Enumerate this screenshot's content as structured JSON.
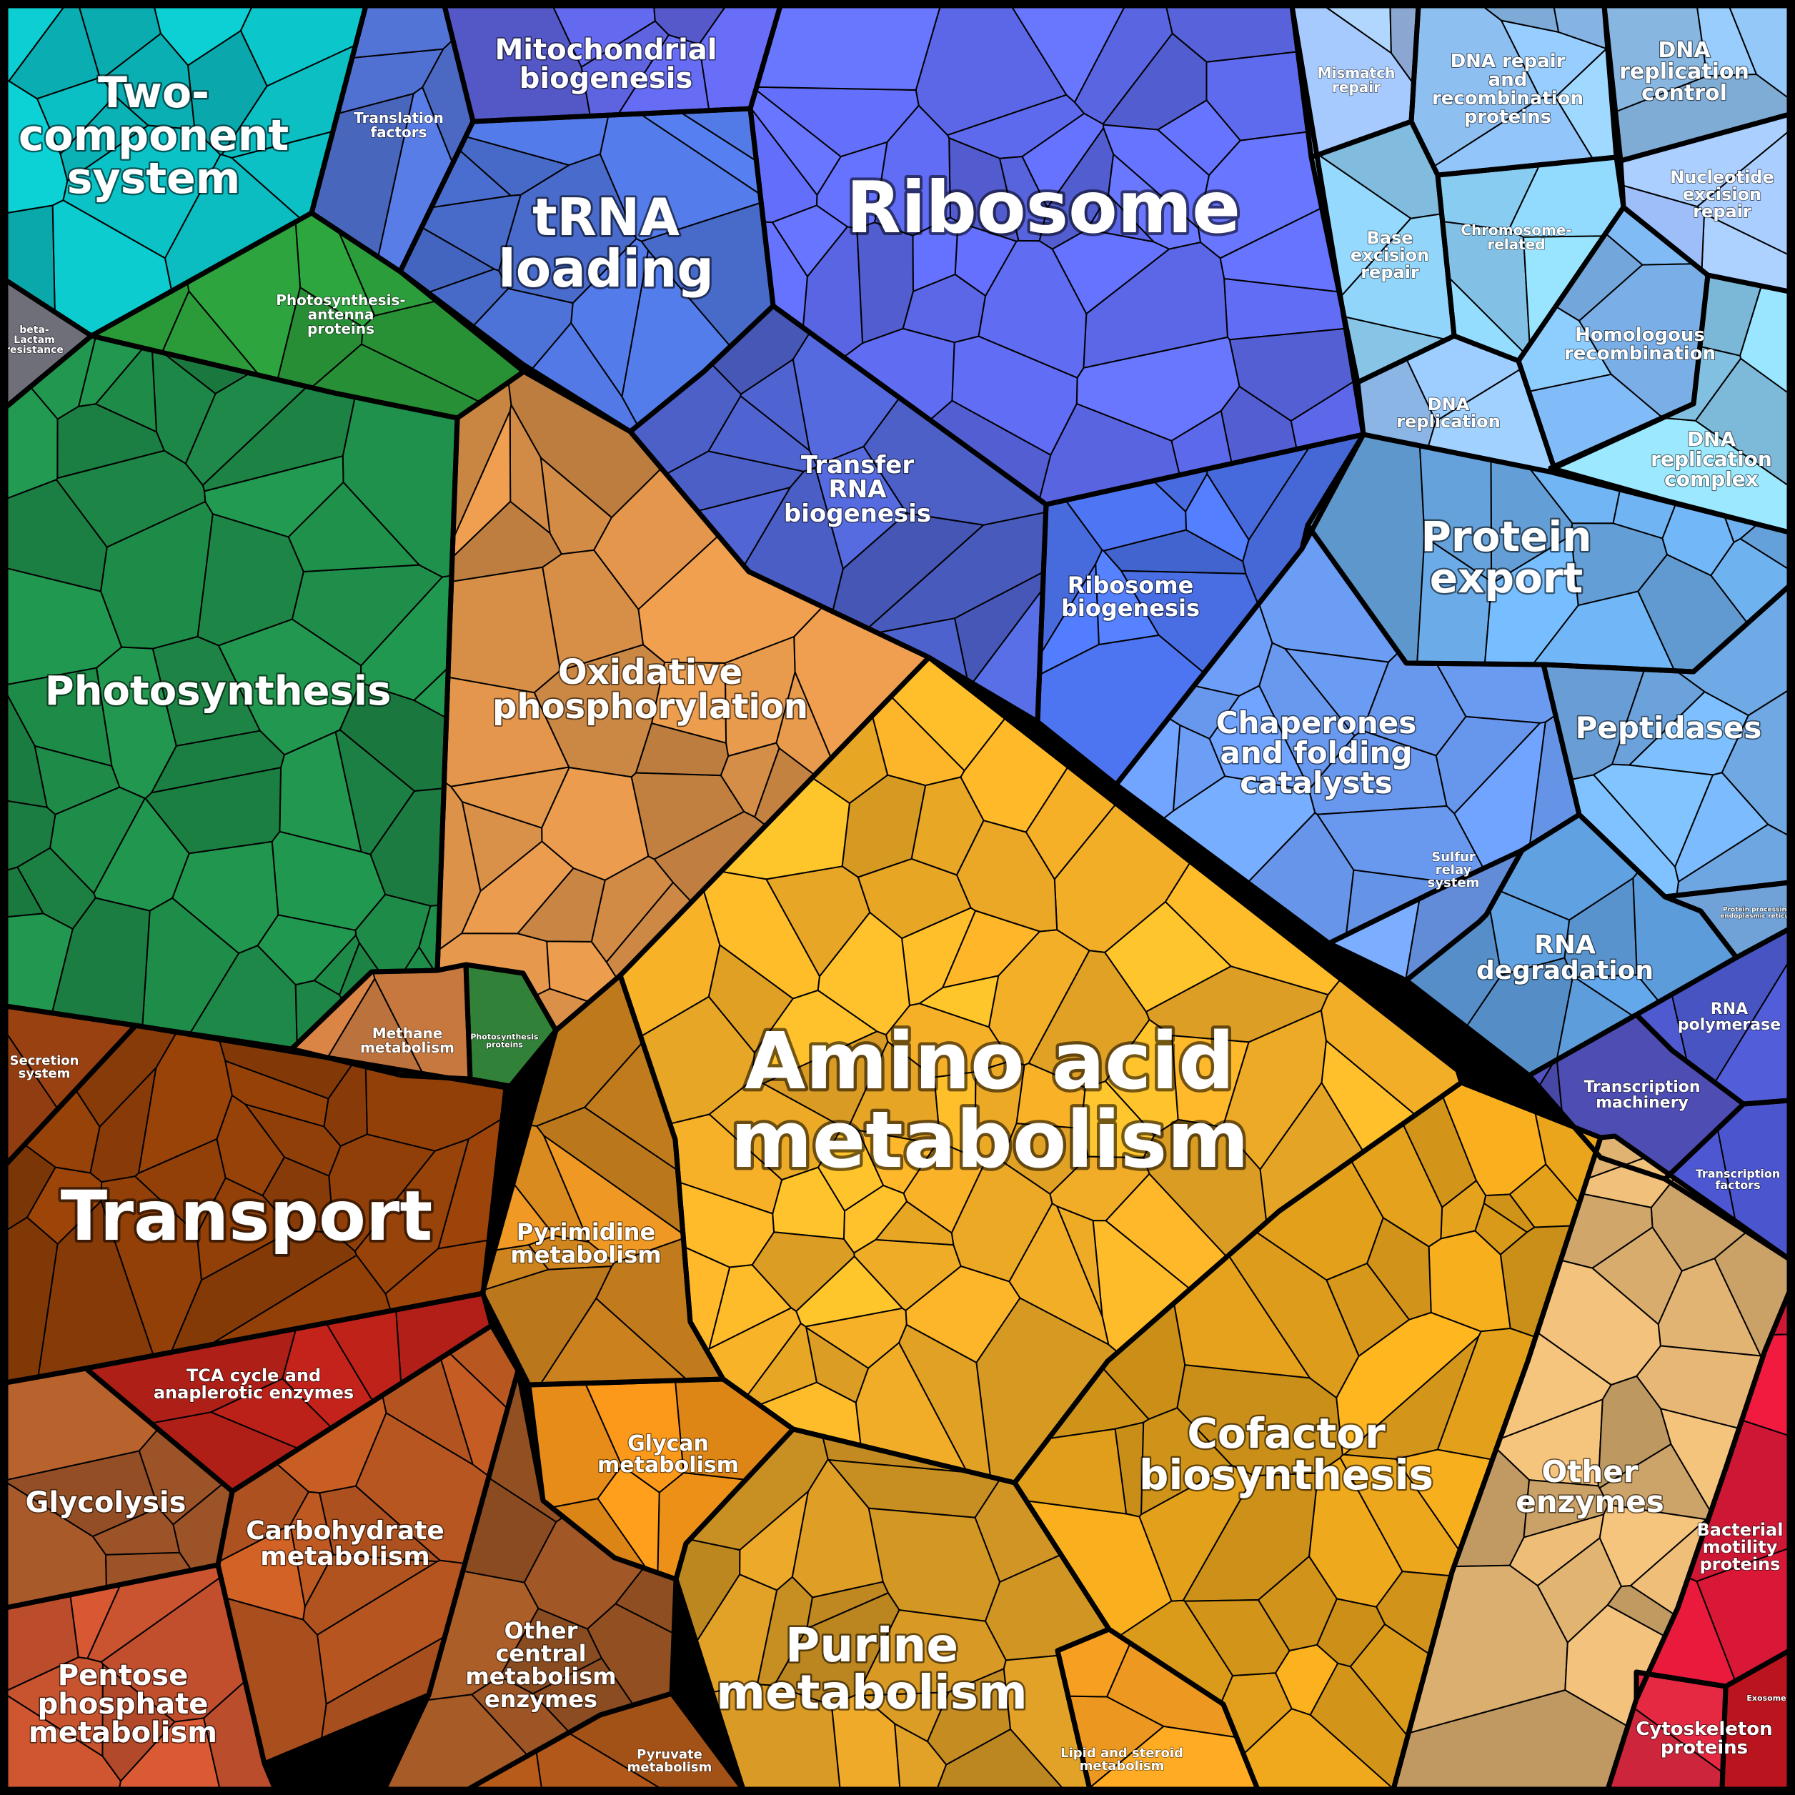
{
  "title": "",
  "regions": [
    {
      "id": "two-component-system",
      "label": "Two-\ncomponent\nsystem",
      "color": "#0bc0c4"
    },
    {
      "id": "translation-factors",
      "label": "Translation\nfactors",
      "color": "#5274d6"
    },
    {
      "id": "mitochondrial-biogenesis",
      "label": "Mitochondrial\nbiogenesis",
      "color": "#5e63e0"
    },
    {
      "id": "trna-loading",
      "label": "tRNA\nloading",
      "color": "#4f75dd"
    },
    {
      "id": "ribosome",
      "label": "Ribosome",
      "color": "#5f6bf0"
    },
    {
      "id": "transfer-rna-biogenesis",
      "label": "Transfer\nRNA\nbiogenesis",
      "color": "#4f63cf"
    },
    {
      "id": "ribosome-biogenesis",
      "label": "Ribosome\nbiogenesis",
      "color": "#4d74f0"
    },
    {
      "id": "mismatch-repair",
      "label": "Mismatch\nrepair",
      "color": "#9fc0f2"
    },
    {
      "id": "dna-repair-recombination",
      "label": "DNA repair\nand\nrecombination\nproteins",
      "color": "#8fc2f5"
    },
    {
      "id": "dna-replication-control",
      "label": "DNA\nreplication\ncontrol",
      "color": "#93c7f6"
    },
    {
      "id": "base-excision-repair",
      "label": "Base\nexcision\nrepair",
      "color": "#8fd0f5"
    },
    {
      "id": "chromosome-related",
      "label": "Chromosome-\nrelated",
      "color": "#8cd0f6"
    },
    {
      "id": "nucleotide-excision-repair",
      "label": "Nucleotide\nexcision\nrepair",
      "color": "#9bbcf6"
    },
    {
      "id": "homologous-recombination",
      "label": "Homologous\nrecombination",
      "color": "#7fb8f2"
    },
    {
      "id": "dna-replication",
      "label": "DNA\nreplication",
      "color": "#92bff0"
    },
    {
      "id": "dna-replication-complex",
      "label": "DNA\nreplication\ncomplex",
      "color": "#8ed3f7"
    },
    {
      "id": "protein-export",
      "label": "Protein\nexport",
      "color": "#6aaae6"
    },
    {
      "id": "peptidases",
      "label": "Peptidases",
      "color": "#76b3f2"
    },
    {
      "id": "chaperones",
      "label": "Chaperones\nand folding\ncatalysts",
      "color": "#6a9bf2"
    },
    {
      "id": "sulfur-relay",
      "label": "Sulfur\nrelay\nsystem",
      "color": "#6e9cf0"
    },
    {
      "id": "protein-processing-er",
      "label": "Protein processing in\nendoplasmic reticulum",
      "color": "#7fb8f5"
    },
    {
      "id": "rna-degradation",
      "label": "RNA\ndegradation",
      "color": "#5c9ad8"
    },
    {
      "id": "rna-polymerase",
      "label": "RNA\npolymerase",
      "color": "#4a55c4"
    },
    {
      "id": "transcription-machinery",
      "label": "Transcription\nmachinery",
      "color": "#5252c0"
    },
    {
      "id": "transcription-factors",
      "label": "Transcription\nfactors",
      "color": "#4a55cc"
    },
    {
      "id": "beta-lactam-resistance",
      "label": "beta-\nLactam\nresistance",
      "color": "#6e6e78"
    },
    {
      "id": "photosynthesis-antenna",
      "label": "Photosynthesis-\nantenna\nproteins",
      "color": "#2b9c3a"
    },
    {
      "id": "photosynthesis",
      "label": "Photosynthesis",
      "color": "#1e8a48"
    },
    {
      "id": "oxidative-phosphorylation",
      "label": "Oxidative\nphosphorylation",
      "color": "#d99048"
    },
    {
      "id": "methane-metabolism",
      "label": "Methane\nmetabolism",
      "color": "#c97a40"
    },
    {
      "id": "photosynthesis-proteins",
      "label": "Photosynthesis\nproteins",
      "color": "#3a9440"
    },
    {
      "id": "amino-acid-metabolism",
      "label": "Amino acid\nmetabolism",
      "color": "#f8b228"
    },
    {
      "id": "pyrimidine-metabolism",
      "label": "Pyrimidine\nmetabolism",
      "color": "#d88a20"
    },
    {
      "id": "glycan-metabolism",
      "label": "Glycan\nmetabolism",
      "color": "#ec8f18"
    },
    {
      "id": "purine-metabolism",
      "label": "Purine\nmetabolism",
      "color": "#d89a25"
    },
    {
      "id": "lipid-steroid-metabolism",
      "label": "Lipid and steroid\nmetabolism",
      "color": "#f09a20"
    },
    {
      "id": "cofactor-biosynthesis",
      "label": "Cofactor\nbiosynthesis",
      "color": "#e8a41c"
    },
    {
      "id": "other-enzymes",
      "label": "Other\nenzymes",
      "color": "#dcb070"
    },
    {
      "id": "secretion-system",
      "label": "Secretion\nsystem",
      "color": "#8a3a10"
    },
    {
      "id": "transport",
      "label": "Transport",
      "color": "#8e3e08"
    },
    {
      "id": "tca-cycle",
      "label": "TCA cycle and\nanaplerotic enzymes",
      "color": "#b42018"
    },
    {
      "id": "glycolysis",
      "label": "Glycolysis",
      "color": "#a95a2a"
    },
    {
      "id": "carbohydrate-metabolism",
      "label": "Carbohydrate\nmetabolism",
      "color": "#c05a22"
    },
    {
      "id": "other-central-metabolism",
      "label": "Other\ncentral\nmetabolism\nenzymes",
      "color": "#9a5424"
    },
    {
      "id": "pentose-phosphate",
      "label": "Pentose\nphosphate\nmetabolism",
      "color": "#cc5430"
    },
    {
      "id": "pyruvate-metabolism",
      "label": "Pyruvate\nmetabolism",
      "color": "#b45a1a"
    },
    {
      "id": "bacterial-motility",
      "label": "Bacterial\nmotility\nproteins",
      "color": "#d81838"
    },
    {
      "id": "cytoskeleton-proteins",
      "label": "Cytoskeleton\nproteins",
      "color": "#de2840"
    },
    {
      "id": "exosome",
      "label": "Exosome",
      "color": "#b8141e"
    }
  ]
}
